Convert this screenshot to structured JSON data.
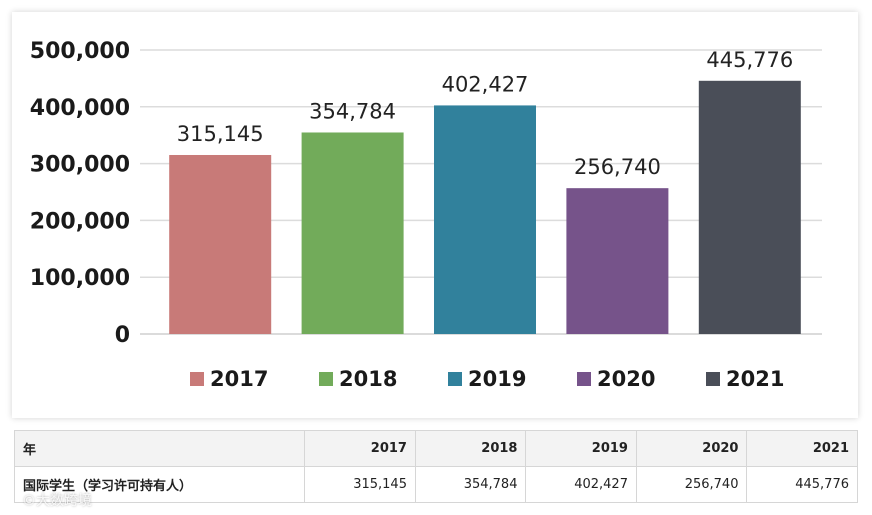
{
  "chart_data": {
    "type": "bar",
    "title": "",
    "xlabel": "",
    "ylabel": "",
    "categories": [
      "2017",
      "2018",
      "2019",
      "2020",
      "2021"
    ],
    "values": [
      315145,
      354784,
      402427,
      256740,
      445776
    ],
    "value_labels": [
      "315,145",
      "354,784",
      "402,427",
      "256,740",
      "445,776"
    ],
    "colors": [
      "#c87a78",
      "#72ab5a",
      "#31819c",
      "#76538a",
      "#4a4e58"
    ],
    "ylim": [
      0,
      500000
    ],
    "yticks": [
      0,
      100000,
      200000,
      300000,
      400000,
      500000
    ],
    "ytick_labels": [
      "0",
      "100,000",
      "200,000",
      "300,000",
      "400,000",
      "500,000"
    ],
    "grid": true,
    "legend": [
      "2017",
      "2018",
      "2019",
      "2020",
      "2021"
    ],
    "legend_position": "bottom"
  },
  "table": {
    "headers": [
      "年",
      "2017",
      "2018",
      "2019",
      "2020",
      "2021"
    ],
    "rows": [
      [
        "国际学生（学习许可持有人）",
        "315,145",
        "354,784",
        "402,427",
        "256,740",
        "445,776"
      ]
    ]
  },
  "watermark": "©大数跨境"
}
